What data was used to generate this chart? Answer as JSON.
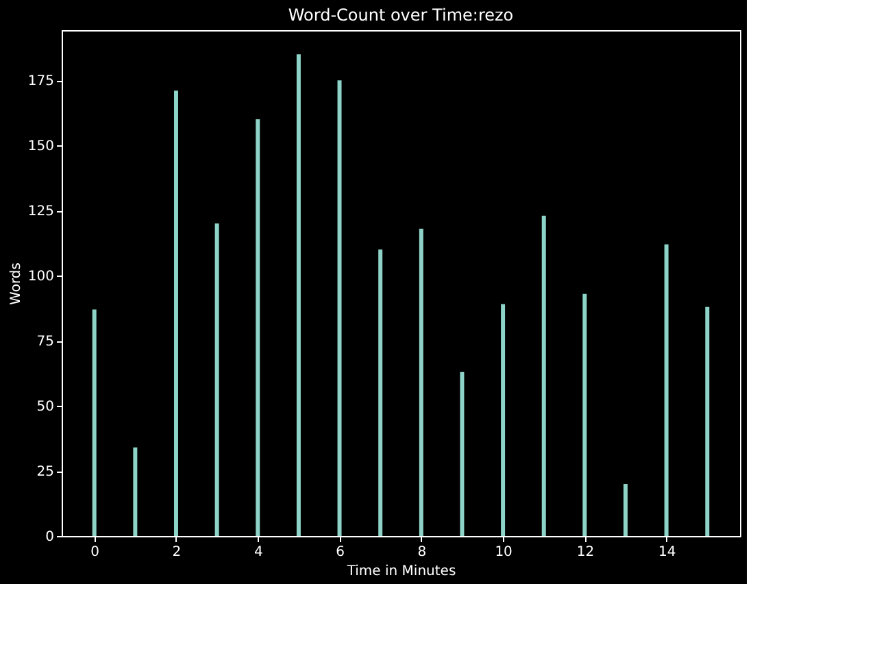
{
  "chart_data": {
    "type": "bar",
    "title": "Word-Count over Time:rezo",
    "xlabel": "Time in Minutes",
    "ylabel": "Words",
    "x": [
      0,
      1,
      2,
      3,
      4,
      5,
      6,
      7,
      8,
      9,
      10,
      11,
      12,
      13,
      14,
      15
    ],
    "values": [
      87,
      34,
      171,
      120,
      160,
      185,
      175,
      110,
      118,
      63,
      89,
      123,
      93,
      20,
      112,
      88
    ],
    "color": "#8dd3c7",
    "xlim": [
      -0.8,
      15.8
    ],
    "xticks": [
      0,
      2,
      4,
      6,
      8,
      10,
      12,
      14
    ],
    "ylim": [
      0,
      194.25
    ],
    "yticks": [
      0,
      25,
      50,
      75,
      100,
      125,
      150,
      175
    ],
    "grid": false
  }
}
